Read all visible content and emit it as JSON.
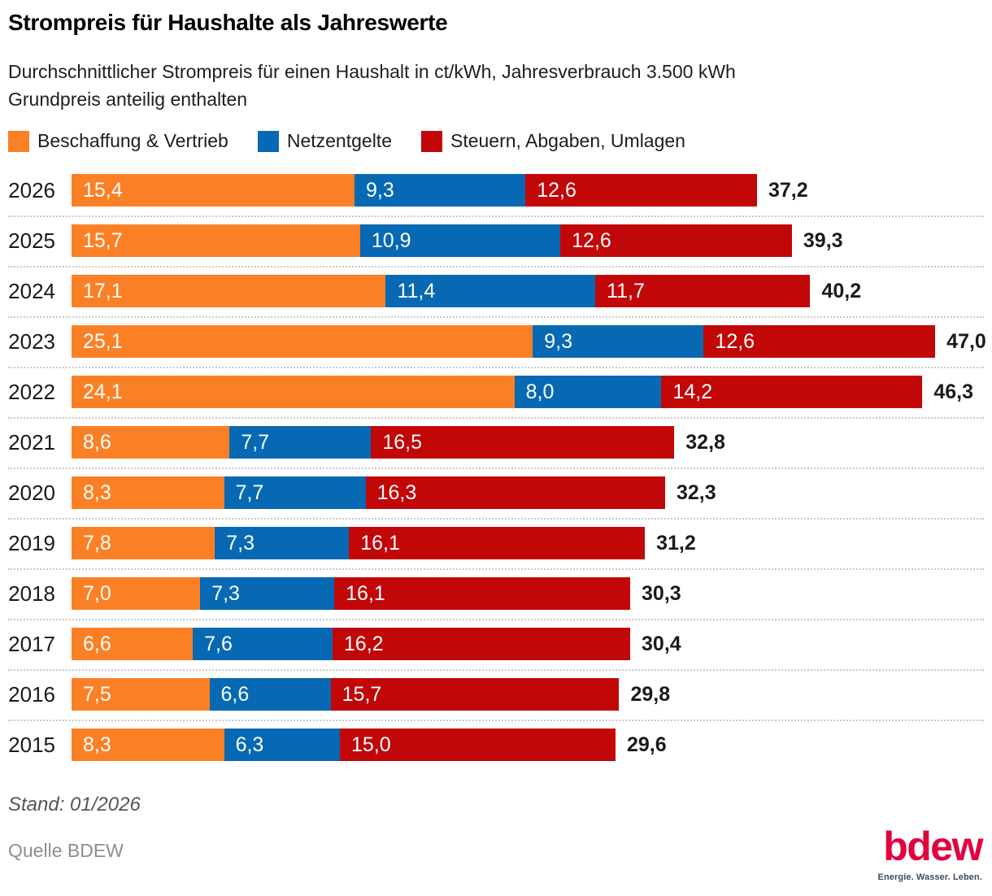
{
  "header": {
    "title": "Strompreis für Haushalte als Jahreswerte",
    "subtitle_line1": "Durchschnittlicher Strompreis für einen Haushalt in ct/kWh, Jahresverbrauch 3.500 kWh",
    "subtitle_line2": "Grundpreis anteilig enthalten"
  },
  "legend": {
    "items": [
      {
        "label": "Beschaffung & Vertrieb",
        "color": "#FB8025"
      },
      {
        "label": "Netzentgelte",
        "color": "#0769B3"
      },
      {
        "label": "Steuern, Abgaben, Umlagen",
        "color": "#C20709"
      }
    ]
  },
  "chart_data": {
    "type": "bar",
    "orientation": "horizontal",
    "stacked": true,
    "unit": "ct/kWh",
    "title": "Strompreis für Haushalte als Jahreswerte",
    "categories": [
      "2026",
      "2025",
      "2024",
      "2023",
      "2022",
      "2021",
      "2020",
      "2019",
      "2018",
      "2017",
      "2016",
      "2015"
    ],
    "series": [
      {
        "name": "Beschaffung & Vertrieb",
        "color": "#FB8025",
        "values": [
          15.4,
          15.7,
          17.1,
          25.1,
          24.1,
          8.6,
          8.3,
          7.8,
          7.0,
          6.6,
          7.5,
          8.3
        ]
      },
      {
        "name": "Netzentgelte",
        "color": "#0769B3",
        "values": [
          9.3,
          10.9,
          11.4,
          9.3,
          8.0,
          7.7,
          7.7,
          7.3,
          7.3,
          7.6,
          6.6,
          6.3
        ]
      },
      {
        "name": "Steuern, Abgaben, Umlagen",
        "color": "#C20709",
        "values": [
          12.6,
          12.6,
          11.7,
          12.6,
          14.2,
          16.5,
          16.3,
          16.1,
          16.1,
          16.2,
          15.7,
          15.0
        ]
      }
    ],
    "totals": [
      "37,2",
      "39,3",
      "40,2",
      "47,0",
      "46,3",
      "32,8",
      "32,3",
      "31,2",
      "30,3",
      "30,4",
      "29,8",
      "29,6"
    ],
    "xlim": [
      0,
      47
    ],
    "decimal_separator": ",",
    "grid": false,
    "legend_position": "top"
  },
  "footer": {
    "stand": "Stand: 01/2026",
    "quelle": "Quelle BDEW"
  },
  "logo": {
    "text": "bdew",
    "tagline": "Energie. Wasser. Leben.",
    "color": "#E2003F",
    "tagline_color": "#3D4C5C"
  }
}
